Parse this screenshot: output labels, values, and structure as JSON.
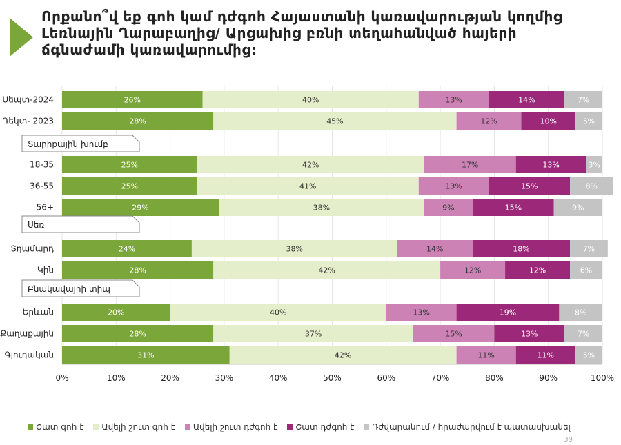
{
  "title": "Որքանո՞վ եք գոհ կամ դժգոհ Հայաստանի կառավարության կողմից Լեռնային Ղարաբաղից/ Արցախից բռնի տեղահանված հայերի ճգնաժամի կառավարումից:",
  "page_number": "39",
  "colors": [
    "#7ba63a",
    "#e4eecb",
    "#cc82b5",
    "#9b2878",
    "#c4c4c4"
  ],
  "chart_data": {
    "type": "bar",
    "orientation": "horizontal",
    "stacked": true,
    "series_names": [
      "Շատ գոհ է",
      "Ավելի շուտ գոհ է",
      "Ավելի շուտ դժգոհ է",
      "Շատ դժգոհ է",
      "Դժվարանում / հրաժարվում է պատասխանել"
    ],
    "xlim": [
      0,
      100
    ],
    "xticks": [
      "0%",
      "10%",
      "20%",
      "30%",
      "40%",
      "50%",
      "60%",
      "70%",
      "80%",
      "90%",
      "100%"
    ],
    "grid": true,
    "legend_position": "bottom",
    "groups": [
      {
        "header": "",
        "rows": [
          {
            "label": "Սեպտ-2024",
            "values": [
              26,
              40,
              13,
              14,
              7
            ]
          },
          {
            "label": "Դեկտ- 2023",
            "values": [
              28,
              45,
              12,
              10,
              5
            ]
          }
        ]
      },
      {
        "header": "Տարիքային խումբ",
        "rows": [
          {
            "label": "18-35",
            "values": [
              25,
              42,
              17,
              13,
              3
            ]
          },
          {
            "label": "36-55",
            "values": [
              25,
              41,
              13,
              15,
              8
            ]
          },
          {
            "label": "56+",
            "values": [
              29,
              38,
              9,
              15,
              9
            ]
          }
        ]
      },
      {
        "header": "Սեռ",
        "rows": [
          {
            "label": "Տղամարդ",
            "values": [
              24,
              38,
              14,
              18,
              7
            ]
          },
          {
            "label": "Կին",
            "values": [
              28,
              42,
              12,
              12,
              6
            ]
          }
        ]
      },
      {
        "header": "Բնակավայրի տիպ",
        "rows": [
          {
            "label": "Երևան",
            "values": [
              20,
              40,
              13,
              19,
              8
            ]
          },
          {
            "label": "Քաղաքային",
            "values": [
              28,
              37,
              15,
              13,
              7
            ]
          },
          {
            "label": "Գյուղական",
            "values": [
              31,
              42,
              11,
              11,
              5
            ]
          }
        ]
      }
    ]
  }
}
